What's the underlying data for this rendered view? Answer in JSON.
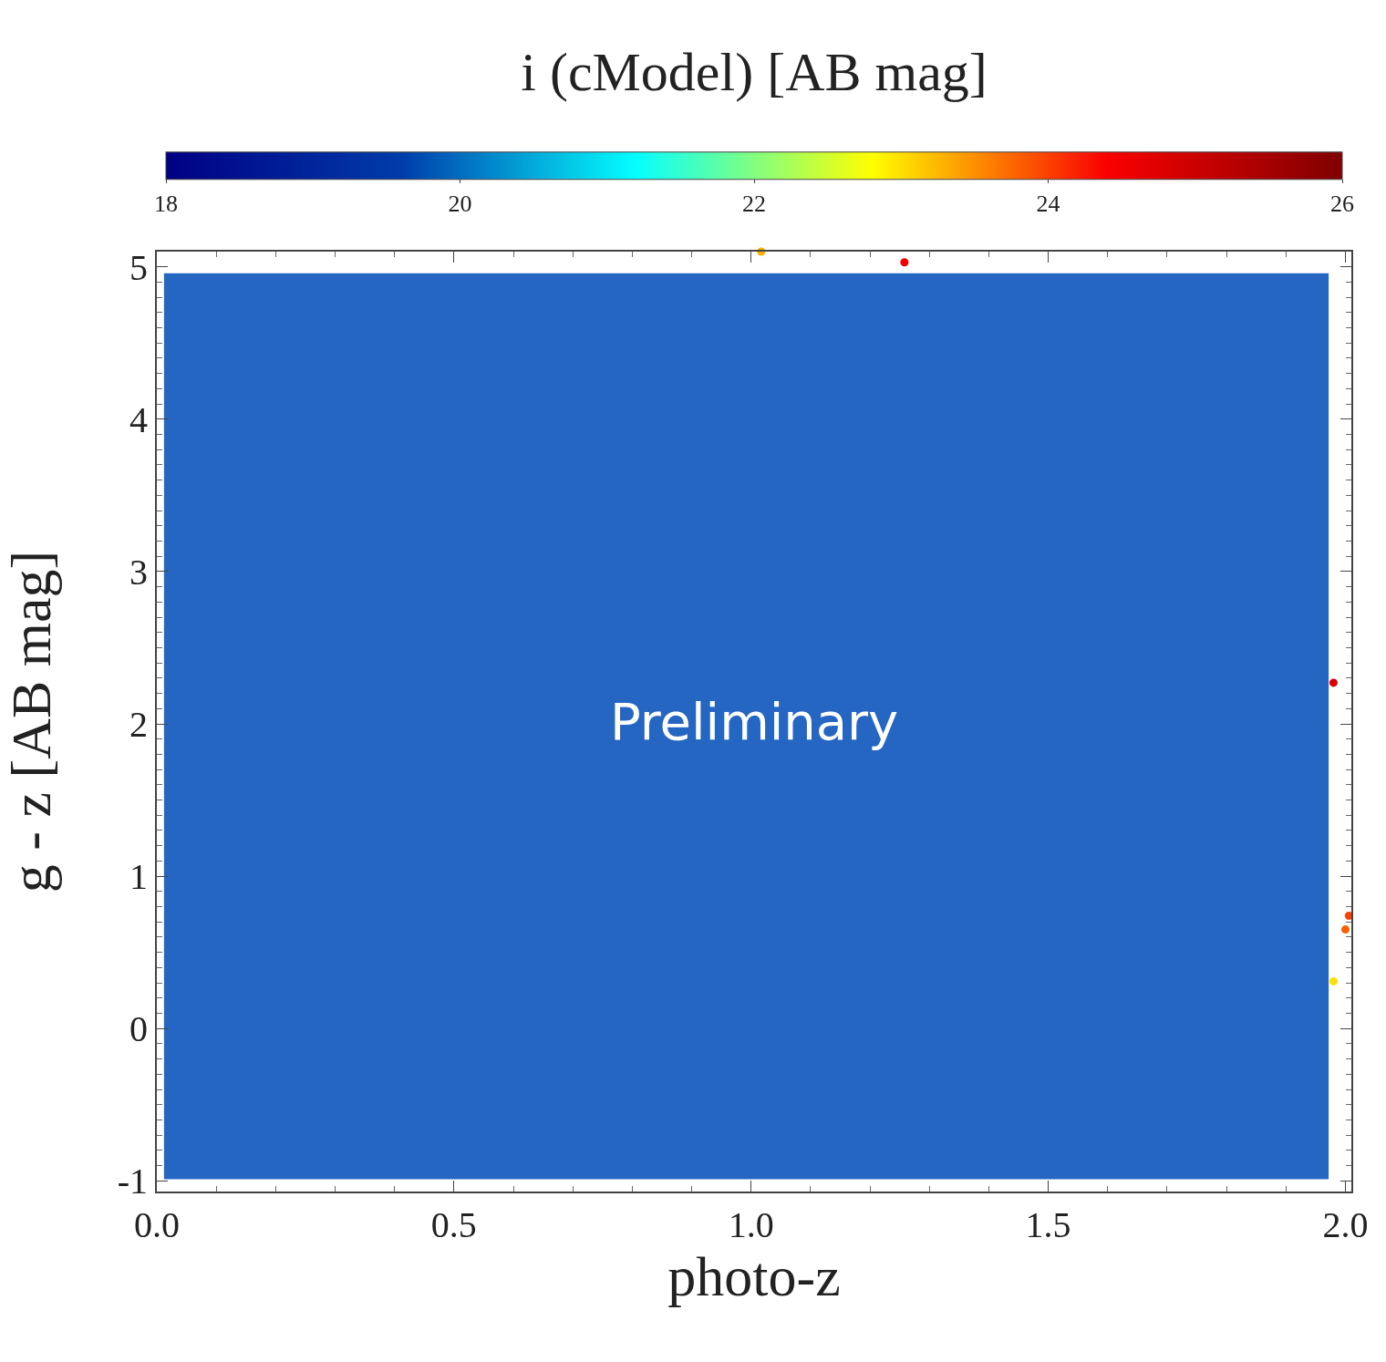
{
  "chart_data": {
    "type": "scatter",
    "xlabel": "photo-z",
    "ylabel": "g - z [AB mag]",
    "clabel": "i (cModel) [AB mag]",
    "x": [
      1.017,
      1.258,
      1.98,
      2.006,
      2.0,
      1.98
    ],
    "values": [
      5.1,
      5.03,
      2.27,
      0.74,
      0.65,
      0.31
    ],
    "cvalues": [
      23.3,
      24.5,
      24.8,
      24.0,
      23.8,
      23.0
    ],
    "clim": [
      18,
      26
    ],
    "cticks": [
      18,
      20,
      22,
      24,
      26
    ],
    "xlim": [
      0,
      2.01
    ],
    "xticks": [
      {
        "value": 0,
        "label": "0.0"
      },
      0.5,
      {
        "value": 1,
        "label": "1.0"
      },
      1.5,
      {
        "value": 2,
        "label": "2.0"
      }
    ],
    "ylim": [
      -1.07,
      5.1
    ],
    "yticks": [
      -1,
      0,
      1,
      2,
      3,
      4,
      5
    ],
    "marker": "circle",
    "annotations": [
      "Preliminary"
    ]
  }
}
